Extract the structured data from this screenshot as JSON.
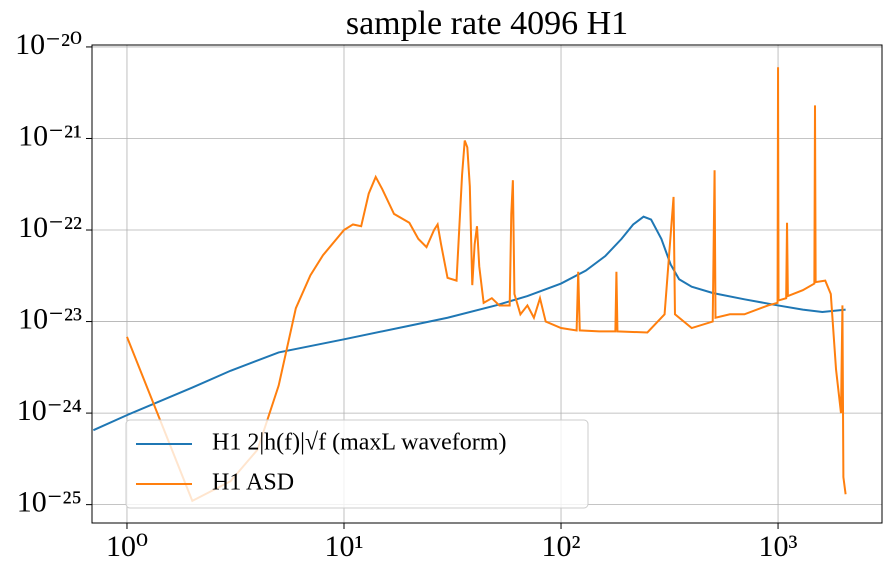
{
  "chart_data": {
    "type": "line",
    "title": "sample rate 4096 H1",
    "xscale": "log",
    "yscale": "log",
    "grid": true,
    "legend_loc": "lower center",
    "xlim": [
      0.69,
      3013
    ],
    "ylim": [
      6.3e-26,
      1.05e-20
    ],
    "xticks": [
      {
        "value": 1,
        "label": "10⁰"
      },
      {
        "value": 10,
        "label": "10¹"
      },
      {
        "value": 100,
        "label": "10²"
      },
      {
        "value": 1000,
        "label": "10³"
      }
    ],
    "yticks": [
      {
        "value": 1e-25,
        "label": "10⁻²⁵"
      },
      {
        "value": 1e-24,
        "label": "10⁻²⁴"
      },
      {
        "value": 1e-23,
        "label": "10⁻²³"
      },
      {
        "value": 1e-22,
        "label": "10⁻²²"
      },
      {
        "value": 1e-21,
        "label": "10⁻²¹"
      },
      {
        "value": 1e-20,
        "label": "10⁻²⁰"
      }
    ],
    "series": [
      {
        "name": "H1 2|h(f)|√f (maxL waveform)",
        "color": "#1f77b4",
        "x": [
          0.7,
          1,
          2,
          3,
          5,
          7,
          10,
          20,
          30,
          50,
          70,
          100,
          130,
          160,
          190,
          215,
          240,
          260,
          290,
          320,
          350,
          400,
          500,
          700,
          1000,
          1300,
          1600,
          2048
        ],
        "values": [
          6.5e-25,
          9.5e-25,
          1.9e-24,
          2.9e-24,
          4.6e-24,
          5.4e-24,
          6.4e-24,
          9e-24,
          1.1e-23,
          1.5e-23,
          1.9e-23,
          2.6e-23,
          3.6e-23,
          5.2e-23,
          8e-23,
          1.15e-22,
          1.4e-22,
          1.3e-22,
          8e-23,
          4.2e-23,
          2.9e-23,
          2.4e-23,
          2.05e-23,
          1.75e-23,
          1.5e-23,
          1.35e-23,
          1.27e-23,
          1.35e-23
        ]
      },
      {
        "name": "H1 ASD",
        "color": "#ff7f0e",
        "x": [
          1,
          2,
          3,
          4,
          5,
          6,
          7,
          8,
          10,
          11,
          12,
          13,
          14,
          15,
          17,
          20,
          22,
          24,
          26,
          27,
          28,
          30,
          33,
          35,
          36,
          37,
          38,
          39,
          40,
          41,
          42,
          44,
          48,
          52,
          58,
          59,
          60,
          61,
          65,
          70,
          75,
          80,
          85,
          100,
          118,
          120,
          122,
          150,
          178,
          180,
          182,
          250,
          300,
          330,
          335,
          400,
          500,
          510,
          515,
          600,
          700,
          900,
          995,
          1000,
          1005,
          1090,
          1100,
          1110,
          1300,
          1470,
          1480,
          1490,
          1650,
          1750,
          1850,
          1950,
          1980,
          2000,
          2048
        ],
        "values": [
          6.8e-24,
          1.1e-25,
          1.8e-25,
          4e-25,
          2e-24,
          1.4e-23,
          3.2e-23,
          5.3e-23,
          1e-22,
          1.15e-22,
          1.1e-22,
          2.5e-22,
          3.8e-22,
          2.8e-22,
          1.5e-22,
          1.2e-22,
          8e-23,
          6.5e-23,
          1e-22,
          1.15e-22,
          7e-23,
          3e-23,
          2.8e-23,
          4e-22,
          9.5e-22,
          8e-22,
          3e-22,
          2.5e-23,
          7e-23,
          1.1e-22,
          4e-23,
          1.6e-23,
          1.8e-23,
          1.5e-23,
          1.5e-23,
          1.5e-22,
          3.5e-22,
          2e-23,
          1.2e-23,
          1.5e-23,
          1.1e-23,
          1.8e-23,
          1e-23,
          8.5e-24,
          8e-24,
          3.5e-23,
          8e-24,
          7.8e-24,
          7.8e-24,
          3.5e-23,
          7.8e-24,
          7.6e-24,
          1.2e-23,
          2.3e-22,
          1.2e-23,
          8.5e-24,
          1e-23,
          4.5e-22,
          1.1e-23,
          1.2e-23,
          1.2e-23,
          1.5e-23,
          1.6e-23,
          6e-21,
          1.7e-23,
          1.8e-23,
          1.2e-22,
          1.9e-23,
          2.2e-23,
          2.6e-23,
          2.3e-21,
          2.7e-23,
          2.8e-23,
          2e-23,
          3e-24,
          1e-24,
          1.5e-23,
          2e-25,
          1.3e-25
        ]
      }
    ]
  }
}
